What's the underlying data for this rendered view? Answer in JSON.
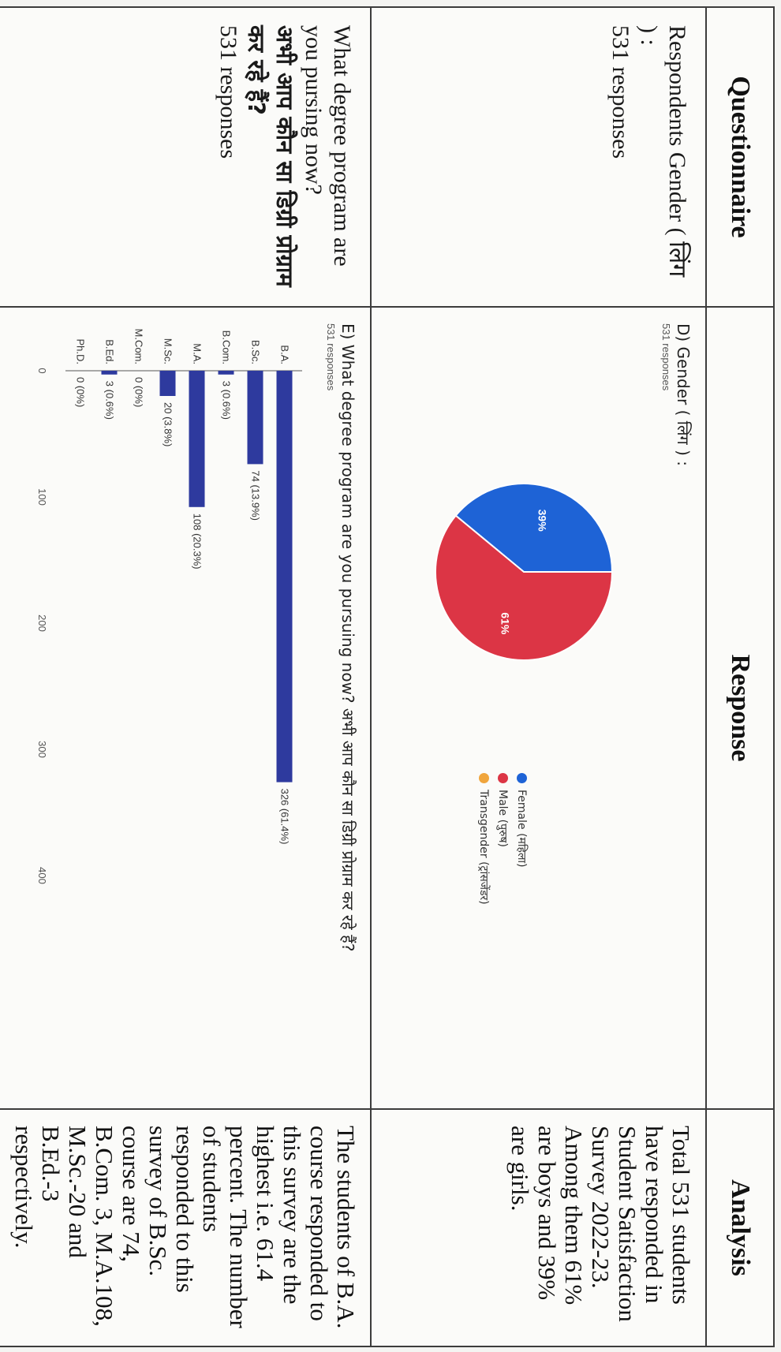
{
  "headers": {
    "questionnaire": "Questionnaire",
    "response": "Response",
    "analysis": "Analysis"
  },
  "row1": {
    "question": "Respondents Gender ( लिंग ) :",
    "responses": "531 responses",
    "chart_title": "D) Gender ( लिंग ) :",
    "chart_subtitle": "531 responses",
    "analysis": "Total 531 students have responded in Student Satisfaction Survey 2022-23. Among them 61% are boys and 39% are girls."
  },
  "row2": {
    "question": "What degree program are you pursing now?",
    "question_hindi": "अभी आप कौन सा डिग्री प्रोग्राम कर रहे हैं?",
    "responses": "531 responses",
    "chart_title": "E) What degree program are you pursuing now?  अभी आप कौन सा डिग्री प्रोग्राम कर रहे हैं?",
    "chart_subtitle": "531 responses",
    "analysis": "The students of B.A. course responded to this survey are the highest i.e. 61.4 percent. The number of students responded to this survey of B.Sc. course are 74, B.Com. 3, M.A.108, M.Sc.-20 and B.Ed.-3 respectively."
  },
  "chart_data": [
    {
      "type": "pie",
      "title": "D) Gender ( लिंग ) :",
      "subtitle": "531 responses",
      "labels": [
        "Female (महिला)",
        "Male (पुरुष)",
        "Transgender (ट्रांसजेंडर)"
      ],
      "values": [
        39,
        61,
        0
      ],
      "value_labels": [
        "39%",
        "61%",
        ""
      ],
      "colors": [
        "#1e63d6",
        "#dc3545",
        "#f0a53c"
      ],
      "legend_position": "right"
    },
    {
      "type": "bar",
      "orientation": "horizontal",
      "title": "E) What degree program are you pursuing now?  अभी आप कौन सा डिग्री प्रोग्राम कर रहे हैं?",
      "subtitle": "531 responses",
      "categories": [
        "B.A.",
        "B.Sc.",
        "B.Com.",
        "M.A.",
        "M.Sc.",
        "M.Com.",
        "B.Ed.",
        "Ph.D."
      ],
      "values": [
        326,
        74,
        3,
        108,
        20,
        0,
        3,
        0
      ],
      "value_labels": [
        "326 (61.4%)",
        "74 (13.9%)",
        "3 (0.6%)",
        "108 (20.3%)",
        "20 (3.8%)",
        "0 (0%)",
        "3 (0.6%)",
        "0 (0%)"
      ],
      "xticks": [
        0,
        100,
        200,
        300,
        400
      ],
      "xlim": [
        0,
        400
      ],
      "color": "#2e3a9e",
      "grid": false
    }
  ]
}
